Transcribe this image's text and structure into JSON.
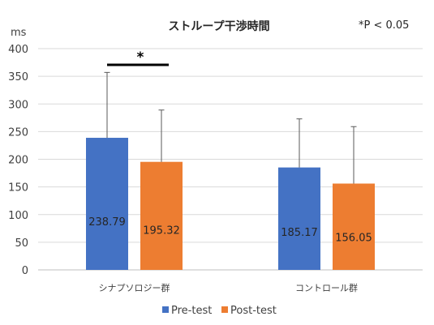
{
  "chart_data": {
    "type": "bar",
    "title": "ストループ干渉時間",
    "annotation": "*P < 0.05",
    "ylabel": "ms",
    "ylim": [
      0,
      400
    ],
    "yticks": [
      0,
      50,
      100,
      150,
      200,
      250,
      300,
      350,
      400
    ],
    "grid": true,
    "legend_position": "bottom",
    "categories": [
      "シナプソロジー群",
      "コントロール群"
    ],
    "series": [
      {
        "name": "Pre-test",
        "color": "#4472C4",
        "values": [
          238.79,
          185.17
        ],
        "error_upper": [
          357,
          273
        ]
      },
      {
        "name": "Post-test",
        "color": "#ED7D31",
        "values": [
          195.32,
          156.05
        ],
        "error_upper": [
          289,
          259
        ]
      }
    ],
    "data_labels": [
      [
        "238.79",
        "185.17"
      ],
      [
        "195.32",
        "156.05"
      ]
    ],
    "significance": {
      "label": "*",
      "between": "シナプソロジー群 Pre-test vs Post-test"
    }
  }
}
